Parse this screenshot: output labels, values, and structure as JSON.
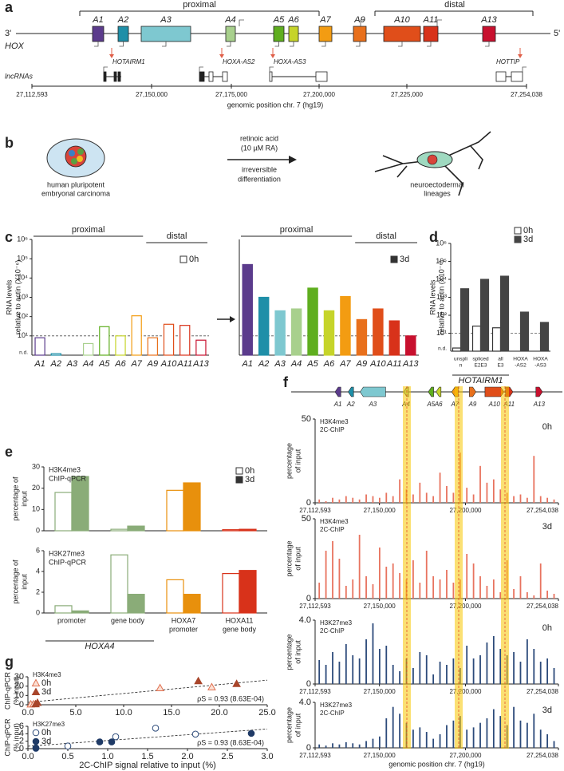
{
  "panel_labels": [
    "a",
    "b",
    "c",
    "d",
    "e",
    "f",
    "g"
  ],
  "hox_map": {
    "region_labels": [
      "proximal",
      "distal"
    ],
    "end_labels": [
      "3'",
      "5'"
    ],
    "row_labels": [
      "HOX",
      "lncRNAs"
    ],
    "genes": [
      "A1",
      "A2",
      "A3",
      "A4",
      "A5",
      "A6",
      "A7",
      "A9",
      "A10",
      "A11",
      "A13"
    ],
    "lncrnas": [
      "HOTAIRM1",
      "HOXA-AS2",
      "HOXA-AS3",
      "HOTTIP"
    ],
    "axis_ticks": [
      "27,112,593",
      "27,150,000",
      "27,175,000",
      "27,200,000",
      "27,225,000",
      "27,254,038"
    ],
    "axis_label": "genomic position chr. 7 (hg19)"
  },
  "differentiation": {
    "start_label": [
      "human pluripotent",
      "embryonal carcinoma"
    ],
    "treatment": [
      "retinoic acid",
      "(10 µM RA)"
    ],
    "process": [
      "irreversible",
      "differentiation"
    ],
    "end_label": [
      "neuroectodermal",
      "lineages"
    ]
  },
  "chart_data": [
    {
      "type": "bar",
      "log_scale": true,
      "ylabel": [
        "RNA levels",
        "relative to actin (X10⁻⁶)"
      ],
      "groups": [
        "proximal",
        "distal"
      ],
      "ylim": [
        1,
        1000000
      ],
      "yticks": [
        {
          "value": 10,
          "label": "10¹"
        },
        {
          "value": 100,
          "label": "10²"
        },
        {
          "value": 1000,
          "label": "10³"
        },
        {
          "value": 10000,
          "label": "10⁴"
        },
        {
          "value": 100000,
          "label": "10⁵"
        },
        {
          "value": 1000000,
          "label": "10⁶"
        }
      ],
      "nd_label": "n.d.",
      "threshold": 10,
      "categories": [
        "A1",
        "A2",
        "A3",
        "A4",
        "A5",
        "A6",
        "A7",
        "A9",
        "A10",
        "A11",
        "A13"
      ],
      "colors": [
        "#5b3b8c",
        "#1f8fa8",
        "#7ec8d0",
        "#a8d08d",
        "#5fae1f",
        "#c6d42a",
        "#f39c12",
        "#e8701c",
        "#e04e1a",
        "#d8321a",
        "#c8102e"
      ],
      "legend": "upper right",
      "series": [
        {
          "name": "0h",
          "fill": false,
          "values": [
            8,
            1.2,
            null,
            4,
            30,
            10,
            110,
            8,
            40,
            35,
            6
          ]
        }
      ]
    },
    {
      "type": "bar",
      "log_scale": true,
      "groups": [
        "proximal",
        "distal"
      ],
      "ylim": [
        1,
        1000000
      ],
      "threshold": 10,
      "categories": [
        "A1",
        "A2",
        "A3",
        "A4",
        "A5",
        "A6",
        "A7",
        "A9",
        "A10",
        "A11",
        "A13"
      ],
      "colors": [
        "#5b3b8c",
        "#1f8fa8",
        "#7ec8d0",
        "#a8d08d",
        "#5fae1f",
        "#c6d42a",
        "#f39c12",
        "#e8701c",
        "#e04e1a",
        "#d8321a",
        "#c8102e"
      ],
      "legend": "upper right",
      "series": [
        {
          "name": "3d",
          "fill": true,
          "values": [
            50000,
            1000,
            200,
            250,
            3000,
            200,
            1100,
            70,
            250,
            60,
            10
          ]
        }
      ]
    },
    {
      "type": "bar",
      "log_scale": true,
      "ylabel": [
        "RNA levels",
        "relative to actin (X10⁻⁶)"
      ],
      "ylim": [
        1,
        1000000
      ],
      "yticks": [
        {
          "value": 10,
          "label": "10¹"
        },
        {
          "value": 100,
          "label": "10²"
        },
        {
          "value": 1000,
          "label": "10³"
        },
        {
          "value": 10000,
          "label": "10⁴"
        },
        {
          "value": 100000,
          "label": "10⁵"
        },
        {
          "value": 1000000,
          "label": "10⁶"
        }
      ],
      "nd_label": "n.d.",
      "threshold": 10,
      "categories": [
        [
          "unspli",
          "n"
        ],
        [
          "spliced",
          "E2E3"
        ],
        [
          "all",
          "E3"
        ],
        [
          "HOXA",
          "-AS2"
        ],
        [
          "HOXA",
          "-AS3"
        ]
      ],
      "group_label": "HOTAIRM1",
      "legend": "upper right",
      "series": [
        {
          "name": "0h",
          "color": "#333333",
          "fill": false,
          "values": [
            1.5,
            25,
            20,
            null,
            null
          ]
        },
        {
          "name": "3d",
          "color": "#444444",
          "fill": true,
          "values": [
            3000,
            10000,
            15000,
            150,
            40
          ]
        }
      ]
    },
    {
      "type": "bar",
      "annotation": [
        "H3K4me3",
        "ChIP-qPCR"
      ],
      "ylabel": [
        "percentage of",
        "input"
      ],
      "ylim": [
        0,
        30
      ],
      "yticks": [
        0,
        10,
        20,
        30
      ],
      "colors": [
        "#8aac78",
        "#8aac78",
        "#e8900c",
        "#d8321a"
      ],
      "legend": "upper right",
      "series": [
        {
          "name": "0h",
          "fill": false,
          "values": [
            18,
            0.7,
            19,
            0.5
          ]
        },
        {
          "name": "3d",
          "fill": true,
          "values": [
            25.5,
            2.2,
            22.5,
            0.7
          ]
        }
      ]
    },
    {
      "type": "bar",
      "annotation": [
        "H3K27me3",
        "ChIP-qPCR"
      ],
      "ylabel": [
        "percentage of",
        "input"
      ],
      "ylim": [
        0,
        6
      ],
      "yticks": [
        0,
        2,
        4,
        6
      ],
      "colors": [
        "#8aac78",
        "#8aac78",
        "#e8900c",
        "#d8321a"
      ],
      "categories": [
        [
          "promoter"
        ],
        [
          "gene body"
        ],
        [
          "HOXA7",
          "promoter"
        ],
        [
          "HOXA11",
          "gene body"
        ]
      ],
      "group_label": "HOXA4",
      "series": [
        {
          "fill": false,
          "values": [
            0.7,
            5.6,
            3.2,
            3.8
          ]
        },
        {
          "fill": true,
          "values": [
            0.2,
            1.8,
            1.8,
            4.1
          ]
        }
      ]
    },
    {
      "type": "bar",
      "annotation": [
        "H3K4me3",
        "2C-ChIP"
      ],
      "sample": "0h",
      "ylabel": [
        "percentage",
        "of input"
      ],
      "color": "#e8735f",
      "xlim": [
        27112593,
        27254038
      ],
      "xticks": [
        {
          "value": 27112593,
          "label": "27,112,593"
        },
        {
          "value": 27150000,
          "label": "27,150,000"
        },
        {
          "value": 27200000,
          "label": "27,200,000"
        },
        {
          "value": 27254038,
          "label": "27,254,038"
        }
      ],
      "ylim": [
        0,
        50
      ],
      "yticks": [
        0,
        50
      ],
      "x": [
        27115000,
        27118900,
        27122800,
        27126700,
        27130600,
        27134500,
        27138400,
        27142300,
        27146200,
        27150100,
        27154000,
        27157900,
        27161800,
        27165700,
        27169600,
        27173500,
        27177400,
        27181300,
        27185200,
        27189100,
        27193000,
        27196900,
        27200800,
        27204700,
        27208600,
        27212500,
        27216400,
        27220300,
        27224200,
        27228100,
        27232000,
        27235900,
        27239800,
        27243700,
        27247600,
        27251500
      ],
      "values": [
        2,
        1,
        3,
        2,
        4,
        3,
        2,
        5,
        4,
        3,
        6,
        4,
        14,
        8,
        5,
        12,
        6,
        4,
        18,
        10,
        6,
        30,
        9,
        5,
        22,
        12,
        14,
        8,
        6,
        4,
        5,
        3,
        28,
        4,
        3,
        2
      ]
    },
    {
      "type": "bar",
      "annotation": [
        "H3K4me3",
        "2C-ChIP"
      ],
      "sample": "3d",
      "ylabel": [
        "percentage",
        "of input"
      ],
      "color": "#e8735f",
      "xlim": [
        27112593,
        27254038
      ],
      "xticks": [
        {
          "value": 27112593,
          "label": "27,112,593"
        },
        {
          "value": 27150000,
          "label": "27,150,000"
        },
        {
          "value": 27200000,
          "label": "27,200,000"
        },
        {
          "value": 27254038,
          "label": "27,254,038"
        }
      ],
      "ylim": [
        0,
        50
      ],
      "yticks": [
        0,
        50
      ],
      "x": [
        27115000,
        27118900,
        27122800,
        27126700,
        27130600,
        27134500,
        27138400,
        27142300,
        27146200,
        27150100,
        27154000,
        27157900,
        27161800,
        27165700,
        27169600,
        27173500,
        27177400,
        27181300,
        27185200,
        27189100,
        27193000,
        27196900,
        27200800,
        27204700,
        27208600,
        27212500,
        27216400,
        27220300,
        27224200,
        27228100,
        27232000,
        27235900,
        27239800,
        27243700,
        27247600,
        27251500
      ],
      "values": [
        10,
        30,
        36,
        25,
        8,
        12,
        40,
        14,
        9,
        32,
        20,
        22,
        16,
        12,
        24,
        10,
        30,
        14,
        12,
        18,
        10,
        12,
        28,
        22,
        14,
        8,
        12,
        4,
        24,
        6,
        14,
        4,
        2,
        22,
        5,
        3
      ]
    },
    {
      "type": "bar",
      "annotation": [
        "H3K27me3",
        "2C-ChIP"
      ],
      "sample": "0h",
      "ylabel": [
        "percentage",
        "of input"
      ],
      "color": "#2c4a7a",
      "xlim": [
        27112593,
        27254038
      ],
      "xticks": [
        {
          "value": 27112593,
          "label": "27,112,593"
        },
        {
          "value": 27150000,
          "label": "27,150,000"
        },
        {
          "value": 27200000,
          "label": "27,200,000"
        },
        {
          "value": 27254038,
          "label": "27,254,038"
        }
      ],
      "ylim": [
        0,
        4
      ],
      "yticks": [
        0,
        {
          "value": 4,
          "label": "4.0"
        }
      ],
      "x": [
        27115000,
        27118900,
        27122800,
        27126700,
        27130600,
        27134500,
        27138400,
        27142300,
        27146200,
        27150100,
        27154000,
        27157900,
        27161800,
        27165700,
        27169600,
        27173500,
        27177400,
        27181300,
        27185200,
        27189100,
        27193000,
        27196900,
        27200800,
        27204700,
        27208600,
        27212500,
        27216400,
        27220300,
        27224200,
        27228100,
        27232000,
        27235900,
        27239800,
        27243700,
        27247600,
        27251500
      ],
      "values": [
        1.5,
        1.2,
        2.0,
        1.4,
        2.5,
        1.8,
        1.6,
        2.8,
        3.8,
        2.2,
        2.4,
        1.2,
        0.8,
        1.6,
        1.0,
        2.0,
        1.8,
        0.6,
        1.4,
        1.2,
        1.6,
        1.0,
        2.4,
        1.6,
        1.8,
        2.6,
        3.0,
        2.2,
        1.8,
        2.0,
        1.4,
        2.8,
        2.2,
        1.4,
        1.6,
        1.0
      ]
    },
    {
      "type": "bar",
      "annotation": [
        "H3K27me3",
        "2C-ChIP"
      ],
      "sample": "3d",
      "ylabel": [
        "percentage",
        "of input"
      ],
      "color": "#2c4a7a",
      "xlim": [
        27112593,
        27254038
      ],
      "xticks": [
        {
          "value": 27112593,
          "label": "27,112,593"
        },
        {
          "value": 27150000,
          "label": "27,150,000"
        },
        {
          "value": 27200000,
          "label": "27,200,000"
        },
        {
          "value": 27254038,
          "label": "27,254,038"
        }
      ],
      "ylim": [
        0,
        4
      ],
      "yticks": [
        0,
        {
          "value": 4,
          "label": "4.0"
        }
      ],
      "xlabel": "genomic position chr. 7 (hg19)",
      "x": [
        27115000,
        27118900,
        27122800,
        27126700,
        27130600,
        27134500,
        27138400,
        27142300,
        27146200,
        27150100,
        27154000,
        27157900,
        27161800,
        27165700,
        27169600,
        27173500,
        27177400,
        27181300,
        27185200,
        27189100,
        27193000,
        27196900,
        27200800,
        27204700,
        27208600,
        27212500,
        27216400,
        27220300,
        27224200,
        27228100,
        27232000,
        27235900,
        27239800,
        27243700,
        27247600,
        27251500
      ],
      "values": [
        0.3,
        0.2,
        0.4,
        0.3,
        0.5,
        0.4,
        0.3,
        0.6,
        0.8,
        1.0,
        2.6,
        3.6,
        3.0,
        2.2,
        1.6,
        1.8,
        1.4,
        0.8,
        1.2,
        2.0,
        2.4,
        2.8,
        1.6,
        1.8,
        2.2,
        2.6,
        3.4,
        2.8,
        2.0,
        3.6,
        2.4,
        2.2,
        3.0,
        1.6,
        1.2,
        0.6
      ]
    },
    {
      "type": "scatter",
      "annotation": [
        "H3K4me3"
      ],
      "ylabel": [
        "ChIP-qPCR",
        "(% input)"
      ],
      "stat": "ρS = 0.93 (8.63E-04)",
      "xlim": [
        0,
        25
      ],
      "xticks": [
        {
          "value": 0,
          "label": "0.0"
        },
        {
          "value": 5,
          "label": "5.0"
        },
        {
          "value": 10,
          "label": "10.0"
        },
        {
          "value": 15,
          "label": "15.0"
        },
        {
          "value": 20,
          "label": "20.0"
        },
        {
          "value": 25,
          "label": "25.0"
        }
      ],
      "ylim": [
        0,
        30
      ],
      "yticks": [
        0,
        10,
        20,
        30
      ],
      "legend": "upper left",
      "series": [
        {
          "name": "0h",
          "marker": "triangle",
          "color": "#e07050",
          "fill": false,
          "x": [
            0.3,
            0.6,
            13.8,
            19.2
          ],
          "values": [
            0.5,
            0.7,
            18,
            19
          ]
        },
        {
          "name": "3d",
          "marker": "triangle",
          "color": "#a8452a",
          "fill": true,
          "x": [
            0.8,
            1.0,
            17.8,
            21.8
          ],
          "values": [
            0.7,
            2.2,
            25.5,
            22.5
          ]
        }
      ]
    },
    {
      "type": "scatter",
      "annotation": [
        "H3K27me3"
      ],
      "ylabel": [
        "ChIP-qPCR",
        "(% input)"
      ],
      "stat": "ρS = 0.93 (8.63E-04)",
      "xlabel": "2C-ChIP signal relative to input (%)",
      "xlim": [
        0,
        3
      ],
      "xticks": [
        {
          "value": 0,
          "label": "0.0"
        },
        {
          "value": 0.5,
          "label": "0.5"
        },
        {
          "value": 1,
          "label": "1.0"
        },
        {
          "value": 1.5,
          "label": "1.5"
        },
        {
          "value": 2,
          "label": "2.0"
        },
        {
          "value": 2.5,
          "label": "2.5"
        },
        {
          "value": 3,
          "label": "3.0"
        }
      ],
      "ylim": [
        0,
        6
      ],
      "yticks": [
        0,
        2,
        4,
        6
      ],
      "legend": "upper left",
      "series": [
        {
          "name": "0h",
          "marker": "circle",
          "color": "#2c4a7a",
          "fill": false,
          "x": [
            0.1,
            0.5,
            1.1,
            1.6,
            2.1
          ],
          "values": [
            0.1,
            0.7,
            3.2,
            5.5,
            3.9
          ]
        },
        {
          "name": "3d",
          "marker": "circle",
          "color": "#1f3a66",
          "fill": true,
          "x": [
            0.1,
            0.9,
            1.05,
            2.8
          ],
          "values": [
            0.2,
            1.8,
            1.8,
            4.1
          ]
        }
      ]
    }
  ]
}
